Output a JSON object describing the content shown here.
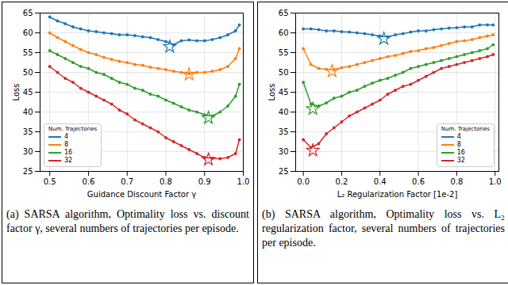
{
  "chart_data": [
    {
      "type": "line",
      "x_label": "Guidance Discount Factor γ",
      "y_label": "Loss",
      "caption": "(a) SARSA algorithm, Optimality loss vs. discount factor γ, several numbers of trajectories per episode.",
      "legend_title": "Num. Trajectories",
      "legend": "lower left",
      "grid": true,
      "xlim": [
        0.475,
        1.0
      ],
      "xticks": [
        0.5,
        0.6,
        0.7,
        0.8,
        0.9,
        {
          "value": 1.0,
          "label": "1.0"
        }
      ],
      "ylim": [
        25,
        65
      ],
      "yticks": [
        25,
        30,
        35,
        40,
        45,
        50,
        55,
        60,
        65
      ],
      "x": [
        0.5,
        0.52,
        0.54,
        0.56,
        0.58,
        0.6,
        0.62,
        0.64,
        0.66,
        0.68,
        0.7,
        0.72,
        0.74,
        0.76,
        0.78,
        0.8,
        0.82,
        0.84,
        0.86,
        0.88,
        0.9,
        0.92,
        0.94,
        0.96,
        0.98,
        0.99
      ],
      "series": [
        {
          "name": "4",
          "color": "#1f77b4",
          "marker": "star",
          "best": {
            "x": 0.81,
            "y": 56.5
          },
          "values": [
            64,
            63,
            62.3,
            61.5,
            61,
            60.5,
            60.3,
            60,
            59.8,
            59.5,
            59.5,
            59.3,
            59,
            58.8,
            58.3,
            57.8,
            57,
            58,
            58.2,
            58,
            58,
            58.3,
            58.8,
            59.5,
            60.5,
            62
          ]
        },
        {
          "name": "8",
          "color": "#ff7f0e",
          "marker": "star",
          "best": {
            "x": 0.86,
            "y": 49.5
          },
          "values": [
            60,
            58.8,
            57.8,
            56.8,
            55.8,
            55,
            54.5,
            53.8,
            53.3,
            52.8,
            52.5,
            52,
            51.8,
            51.3,
            51,
            50.7,
            50.3,
            50,
            49.7,
            50,
            50,
            50.3,
            50.7,
            51.5,
            53.5,
            56
          ]
        },
        {
          "name": "16",
          "color": "#2ca02c",
          "marker": "star",
          "best": {
            "x": 0.91,
            "y": 38.5
          },
          "values": [
            55.5,
            54.5,
            53.5,
            52.5,
            51.5,
            51,
            50,
            49.5,
            48.5,
            47.5,
            47,
            46,
            45.5,
            44.5,
            44,
            43,
            42.2,
            41.3,
            40.5,
            40,
            39.3,
            39,
            40,
            41.5,
            44,
            47
          ]
        },
        {
          "name": "32",
          "color": "#d62728",
          "marker": "star",
          "best": {
            "x": 0.91,
            "y": 28
          },
          "values": [
            51.5,
            50,
            48.5,
            47.5,
            46,
            45,
            44,
            43,
            42,
            40.5,
            39.5,
            38,
            37,
            36,
            35,
            33.5,
            32.5,
            31.5,
            30.5,
            29.5,
            28.5,
            28.3,
            28.2,
            28.5,
            29.5,
            33
          ]
        }
      ]
    },
    {
      "type": "line",
      "x_label": "L₂ Regularization Factor [1e-2]",
      "y_label": "Loss",
      "caption": "(b) SARSA algorithm, Optimality loss vs. L₂ regularization factor, several numbers of trajectories per episode.",
      "legend_title": "Num. Trajectories",
      "legend": "lower right",
      "grid": true,
      "xlim": [
        -0.04,
        1.02
      ],
      "xticks": [
        {
          "value": 0,
          "label": "0.0"
        },
        0.2,
        0.4,
        0.6,
        0.8,
        {
          "value": 1.0,
          "label": "1.0"
        }
      ],
      "ylim": [
        25,
        65
      ],
      "yticks": [
        25,
        30,
        35,
        40,
        45,
        50,
        55,
        60,
        65
      ],
      "x": [
        0,
        0.04,
        0.08,
        0.12,
        0.16,
        0.2,
        0.24,
        0.28,
        0.32,
        0.36,
        0.4,
        0.44,
        0.48,
        0.52,
        0.56,
        0.6,
        0.64,
        0.68,
        0.72,
        0.76,
        0.8,
        0.84,
        0.88,
        0.92,
        0.96,
        0.99
      ],
      "series": [
        {
          "name": "4",
          "color": "#1f77b4",
          "marker": "star",
          "best": {
            "x": 0.42,
            "y": 58.5
          },
          "values": [
            61,
            61,
            60.8,
            60.5,
            60.5,
            60.3,
            60.2,
            60,
            59.8,
            59.5,
            59.2,
            59,
            59.5,
            59.8,
            60.2,
            60.5,
            60.5,
            60.8,
            61,
            61.2,
            61.3,
            61.5,
            61.5,
            62,
            62,
            62
          ]
        },
        {
          "name": "8",
          "color": "#ff7f0e",
          "marker": "star",
          "best": {
            "x": 0.15,
            "y": 50.3
          },
          "values": [
            56,
            52,
            51,
            50.8,
            50.7,
            51.2,
            51.5,
            52,
            52.5,
            53,
            53.5,
            54,
            54.3,
            54.8,
            55.3,
            55.5,
            56,
            56.3,
            56.8,
            57.3,
            57.8,
            58,
            58.3,
            58.8,
            59.2,
            59.5
          ]
        },
        {
          "name": "16",
          "color": "#2ca02c",
          "marker": "star",
          "best": {
            "x": 0.05,
            "y": 40.8
          },
          "values": [
            47.5,
            42,
            41.5,
            42.3,
            43.5,
            44,
            45,
            45.5,
            46.5,
            47.3,
            48,
            48.5,
            49.3,
            50,
            51,
            51.5,
            52,
            52.5,
            53,
            53.5,
            54,
            54.5,
            55,
            55.5,
            56,
            57
          ]
        },
        {
          "name": "32",
          "color": "#d62728",
          "marker": "star",
          "best": {
            "x": 0.05,
            "y": 30.3
          },
          "values": [
            33,
            31,
            32,
            34.5,
            36,
            37.5,
            39,
            40,
            41,
            42,
            43,
            44.5,
            45.5,
            46.5,
            47,
            48,
            49,
            50,
            51,
            51.5,
            52,
            52.5,
            53,
            53.5,
            54,
            54.5
          ]
        }
      ]
    }
  ]
}
